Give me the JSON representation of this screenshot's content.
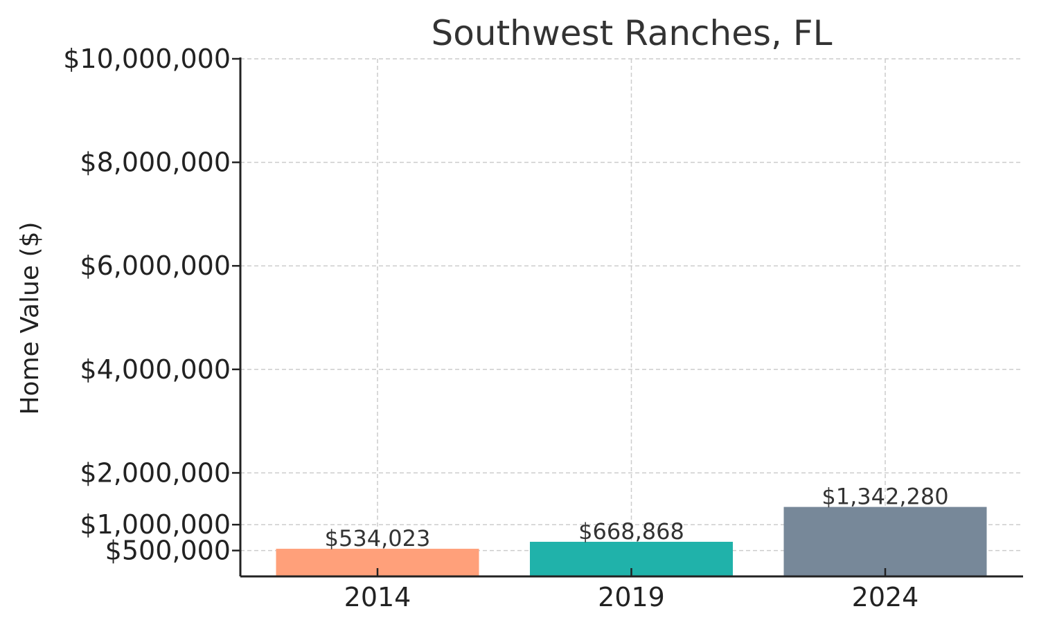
{
  "chart_data": {
    "type": "bar",
    "title": "Southwest Ranches, FL",
    "xlabel": "",
    "ylabel": "Home Value ($)",
    "categories": [
      "2014",
      "2019",
      "2024"
    ],
    "values": [
      534023,
      668868,
      1342280
    ],
    "value_labels": [
      "$534,023",
      "$668,868",
      "$1,342,280"
    ],
    "colors": [
      "#FFA07A",
      "#20B2AA",
      "#778899"
    ],
    "ylim": [
      0,
      10000000
    ],
    "yticks": [
      500000,
      1000000,
      2000000,
      4000000,
      6000000,
      8000000,
      10000000
    ],
    "ytick_labels": [
      "$500,000",
      "$1,000,000",
      "$2,000,000",
      "$4,000,000",
      "$6,000,000",
      "$8,000,000",
      "$10,000,000"
    ],
    "grid": true,
    "legend": "none"
  }
}
